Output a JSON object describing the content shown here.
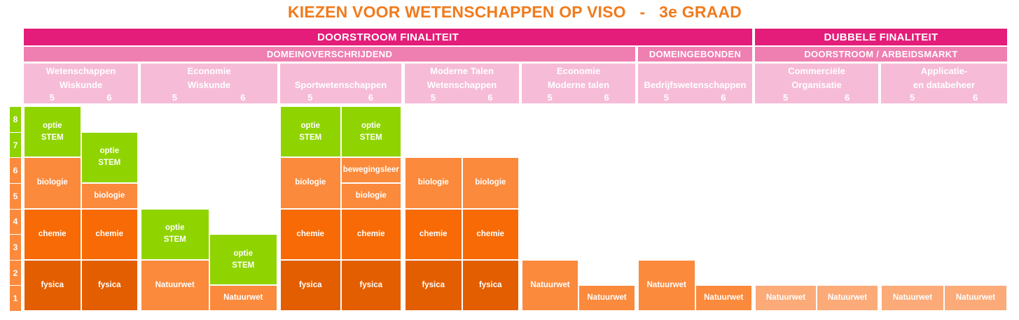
{
  "title": "KIEZEN VOOR WETENSCHAPPEN OP VISO   -   3e GRAAD",
  "finality": {
    "doorstroom": "DOORSTROOM FINALITEIT",
    "dubbele": "DUBBELE FINALITEIT"
  },
  "domains": {
    "domeinoverschrijdend": "DOMEINOVERSCHRIJDEND",
    "domeingebonden": "DOMEINGEBONDEN",
    "doorstroom_arbeidsmarkt": "DOORSTROOM / ARBEIDSMARKT"
  },
  "colors": {
    "finality_band": "#e31d79",
    "domain_band": "#ef7eb1",
    "programme_band": "#f6bcd7",
    "option_stem": "#8fd400",
    "biologie": "#fb8a3c",
    "chemie": "#f76a05",
    "fysica": "#e35e00",
    "natuurwet": "#fb8a3c",
    "natuurwet_dubbel": "#fbaa78",
    "title": "#f07b1d"
  },
  "hour_scale": [
    "8",
    "7",
    "6",
    "5",
    "4",
    "3",
    "2",
    "1"
  ],
  "programmes": [
    {
      "label": "Wetenschappen\nWiskunde",
      "years": [
        "5",
        "6"
      ],
      "columns": [
        {
          "blocks": [
            {
              "label": "fysica",
              "hours": 2
            },
            {
              "label": "chemie",
              "hours": 2
            },
            {
              "label": "biologie",
              "hours": 2
            },
            {
              "label": "optie\nSTEM",
              "hours": 2
            }
          ]
        },
        {
          "blocks": [
            {
              "label": "fysica",
              "hours": 2
            },
            {
              "label": "chemie",
              "hours": 2
            },
            {
              "label": "biologie",
              "hours": 1
            },
            {
              "label": "optie\nSTEM",
              "hours": 2
            }
          ]
        }
      ]
    },
    {
      "label": "Economie\nWiskunde",
      "years": [
        "5",
        "6"
      ],
      "columns": [
        {
          "blocks": [
            {
              "label": "Natuurwet",
              "hours": 2
            },
            {
              "label": "optie\nSTEM",
              "hours": 2
            }
          ]
        },
        {
          "blocks": [
            {
              "label": "Natuurwet",
              "hours": 1
            },
            {
              "label": "optie\nSTEM",
              "hours": 2
            }
          ]
        }
      ]
    },
    {
      "label": "Sportwetenschappen",
      "years": [
        "5",
        "6"
      ],
      "columns": [
        {
          "blocks": [
            {
              "label": "fysica",
              "hours": 2
            },
            {
              "label": "chemie",
              "hours": 2
            },
            {
              "label": "biologie",
              "hours": 2
            },
            {
              "label": "optie\nSTEM",
              "hours": 2
            }
          ]
        },
        {
          "blocks": [
            {
              "label": "fysica",
              "hours": 2
            },
            {
              "label": "chemie",
              "hours": 2
            },
            {
              "label": "biologie",
              "hours": 1
            },
            {
              "label": "bewegingsleer",
              "hours": 1
            },
            {
              "label": "optie\nSTEM",
              "hours": 2
            }
          ]
        }
      ]
    },
    {
      "label": "Moderne Talen\nWetenschappen",
      "years": [
        "5",
        "6"
      ],
      "columns": [
        {
          "blocks": [
            {
              "label": "fysica",
              "hours": 2
            },
            {
              "label": "chemie",
              "hours": 2
            },
            {
              "label": "biologie",
              "hours": 2
            }
          ]
        },
        {
          "blocks": [
            {
              "label": "fysica",
              "hours": 2
            },
            {
              "label": "chemie",
              "hours": 2
            },
            {
              "label": "biologie",
              "hours": 2
            }
          ]
        }
      ]
    },
    {
      "label": "Economie\nModerne talen",
      "years": [
        "5",
        "6"
      ],
      "columns": [
        {
          "blocks": [
            {
              "label": "Natuurwet",
              "hours": 2
            }
          ]
        },
        {
          "blocks": [
            {
              "label": "Natuurwet",
              "hours": 1
            }
          ]
        }
      ]
    },
    {
      "label": "Bedrijfswetenschappen",
      "years": [
        "5",
        "6"
      ],
      "columns": [
        {
          "blocks": [
            {
              "label": "Natuurwet",
              "hours": 2
            }
          ]
        },
        {
          "blocks": [
            {
              "label": "Natuurwet",
              "hours": 1
            }
          ]
        }
      ]
    },
    {
      "label": "Commerciële\nOrganisatie",
      "years": [
        "5",
        "6"
      ],
      "columns": [
        {
          "blocks": [
            {
              "label": "Natuurwet",
              "hours": 1
            }
          ]
        },
        {
          "blocks": [
            {
              "label": "Natuurwet",
              "hours": 1
            }
          ]
        }
      ]
    },
    {
      "label": "Applicatie-\nen databeheer",
      "years": [
        "5",
        "6"
      ],
      "columns": [
        {
          "blocks": [
            {
              "label": "Natuurwet",
              "hours": 1
            }
          ]
        },
        {
          "blocks": [
            {
              "label": "Natuurwet",
              "hours": 1
            }
          ]
        }
      ]
    }
  ]
}
